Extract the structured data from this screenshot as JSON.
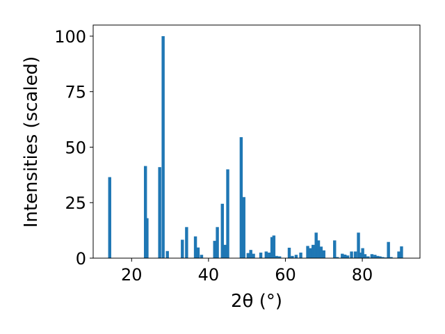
{
  "chart_data": {
    "type": "bar",
    "xlabel": "2θ (°)",
    "ylabel": "Intensities (scaled)",
    "xlim": [
      10,
      95
    ],
    "ylim": [
      0,
      105
    ],
    "xticks": [
      20,
      40,
      60,
      80
    ],
    "yticks": [
      0,
      25,
      50,
      75,
      100
    ],
    "bar_width_data": 0.8,
    "color": "#1f77b4",
    "x": [
      14.3,
      23.6,
      24.0,
      27.3,
      28.2,
      29.3,
      33.2,
      34.3,
      36.6,
      37.3,
      38.2,
      41.6,
      42.3,
      43.6,
      44.3,
      45.0,
      48.5,
      49.2,
      50.3,
      51.0,
      51.7,
      53.6,
      55.0,
      55.8,
      56.5,
      57.0,
      57.7,
      58.5,
      61.0,
      61.8,
      62.8,
      64.0,
      65.8,
      66.5,
      67.2,
      68.0,
      68.6,
      69.3,
      70.0,
      72.8,
      73.5,
      74.8,
      75.5,
      76.2,
      77.2,
      78.2,
      79.0,
      79.5,
      80.1,
      80.7,
      81.5,
      82.5,
      83.3,
      84.0,
      84.6,
      85.3,
      86.0,
      86.8,
      87.5,
      89.5,
      90.2
    ],
    "values": [
      36.5,
      41.5,
      18,
      41,
      100,
      3.2,
      8.3,
      14,
      9.8,
      4.8,
      1.5,
      7.8,
      14,
      24.5,
      6,
      40,
      54.5,
      27.5,
      2.3,
      3.7,
      2,
      2.5,
      3,
      2.5,
      9.5,
      10.2,
      1,
      0.8,
      4.7,
      1,
      1.5,
      2.5,
      5.5,
      4.5,
      6,
      11.5,
      8,
      5.2,
      3.5,
      8,
      0.5,
      2,
      1.6,
      1.2,
      3,
      3,
      11.5,
      2.5,
      4.5,
      1.8,
      0.8,
      1.8,
      1.5,
      1,
      0.8,
      0.5,
      0.3,
      7.3,
      0.5,
      3,
      5.3
    ]
  }
}
